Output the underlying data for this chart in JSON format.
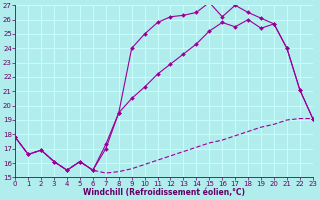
{
  "xlabel": "Windchill (Refroidissement éolien,°C)",
  "xlim": [
    0,
    23
  ],
  "ylim": [
    15,
    27
  ],
  "xticks": [
    0,
    1,
    2,
    3,
    4,
    5,
    6,
    7,
    8,
    9,
    10,
    11,
    12,
    13,
    14,
    15,
    16,
    17,
    18,
    19,
    20,
    21,
    22,
    23
  ],
  "yticks": [
    15,
    16,
    17,
    18,
    19,
    20,
    21,
    22,
    23,
    24,
    25,
    26,
    27
  ],
  "bg_color": "#b2eded",
  "grid_color": "#ccffff",
  "line_color": "#990099",
  "line1_x": [
    0,
    1,
    2,
    3,
    4,
    5,
    6,
    7,
    8,
    9,
    10,
    11,
    12,
    13,
    14,
    15,
    16,
    17,
    18,
    19,
    20,
    21,
    22,
    23
  ],
  "line1_y": [
    17.8,
    16.6,
    16.9,
    16.1,
    15.5,
    16.1,
    15.5,
    17.3,
    19.5,
    24.0,
    25.0,
    25.8,
    26.2,
    26.3,
    26.5,
    27.2,
    26.2,
    27.0,
    26.5,
    26.1,
    25.7,
    24.0,
    21.1,
    19.1
  ],
  "line2_x": [
    0,
    1,
    2,
    3,
    4,
    5,
    6,
    7,
    8,
    9,
    10,
    11,
    12,
    13,
    14,
    15,
    16,
    17,
    18,
    19,
    20,
    21,
    22,
    23
  ],
  "line2_y": [
    17.8,
    16.6,
    16.9,
    16.1,
    15.5,
    16.1,
    15.5,
    17.0,
    19.5,
    20.5,
    21.3,
    22.2,
    22.9,
    23.6,
    24.3,
    25.2,
    25.8,
    25.5,
    26.0,
    25.4,
    25.7,
    24.0,
    21.1,
    19.1
  ],
  "line3_x": [
    0,
    1,
    2,
    3,
    4,
    5,
    6,
    7,
    8,
    9,
    10,
    11,
    12,
    13,
    14,
    15,
    16,
    17,
    18,
    19,
    20,
    21,
    22,
    23
  ],
  "line3_y": [
    17.8,
    16.6,
    16.9,
    16.1,
    15.5,
    16.1,
    15.5,
    15.3,
    15.4,
    15.6,
    15.9,
    16.2,
    16.5,
    16.8,
    17.1,
    17.4,
    17.6,
    17.9,
    18.2,
    18.5,
    18.7,
    19.0,
    19.1,
    19.1
  ],
  "font_color": "#660066",
  "xlabel_fontsize": 5.5,
  "tick_fontsize": 5
}
